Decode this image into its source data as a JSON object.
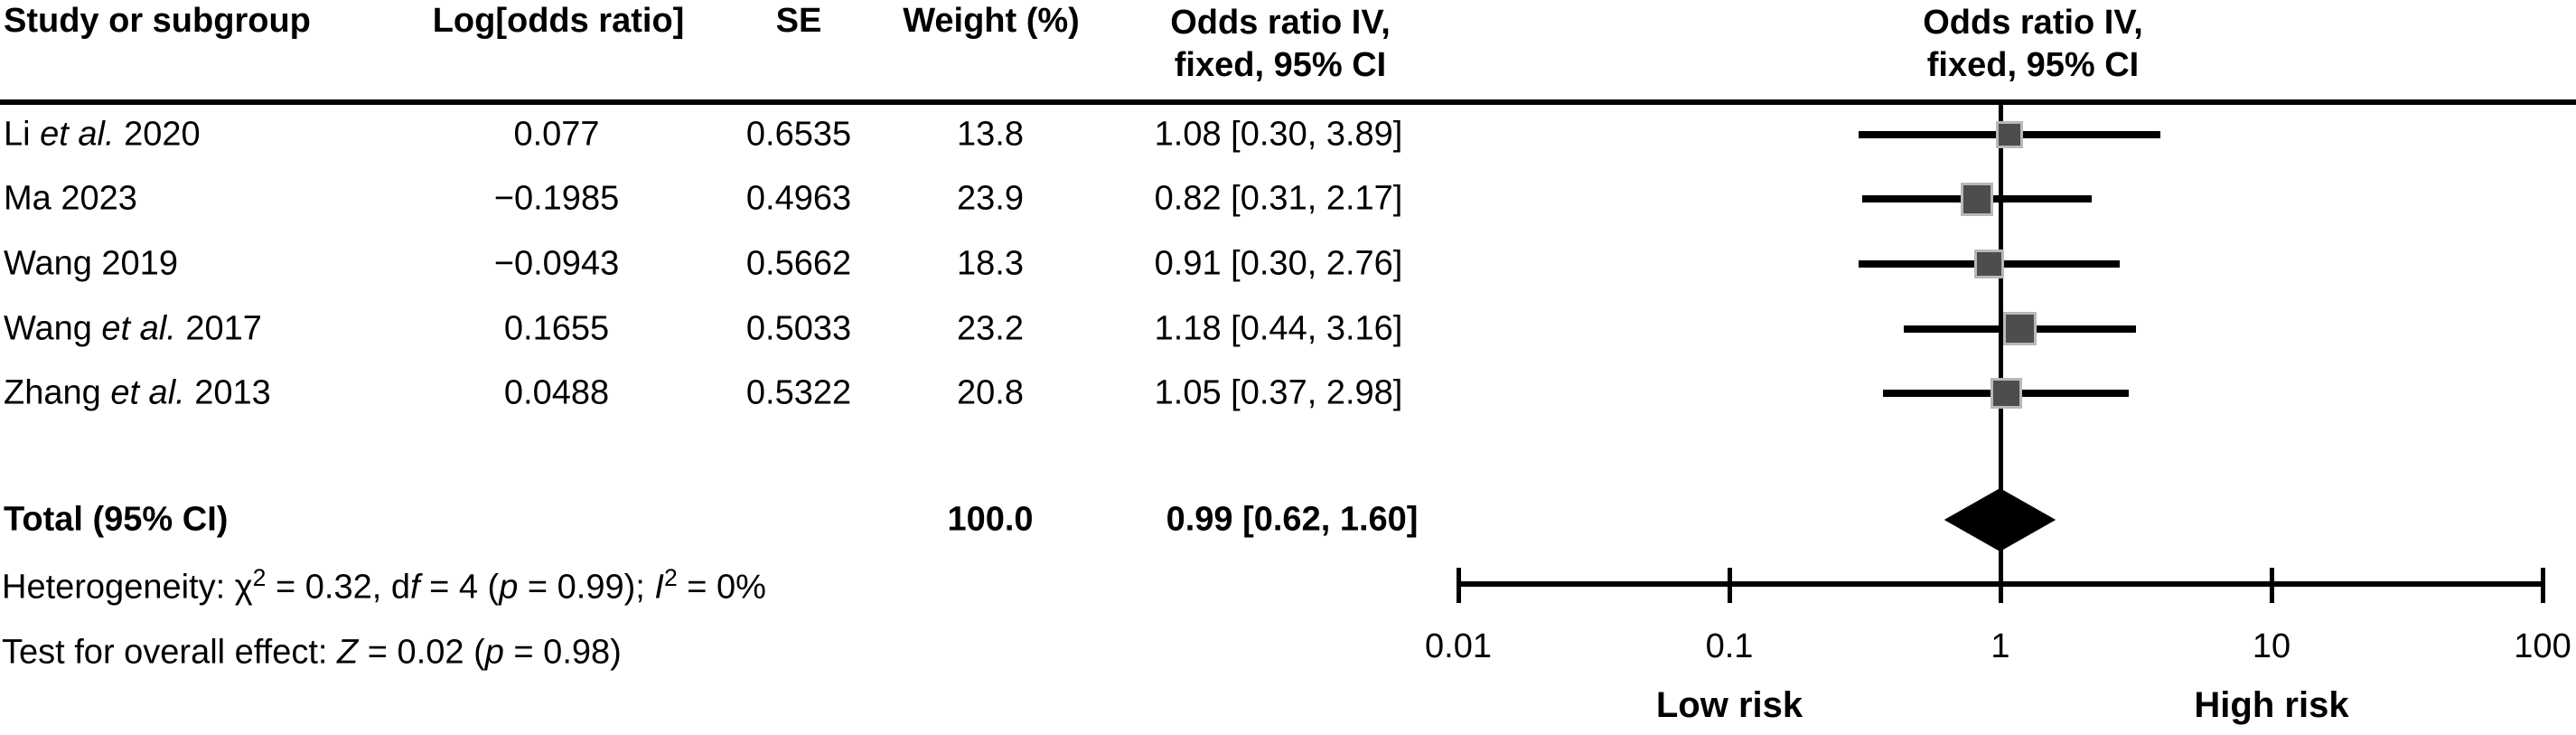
{
  "figure": {
    "headers": {
      "study": "Study or subgroup",
      "log_or": "Log[odds ratio]",
      "se": "SE",
      "weight": "Weight (%)",
      "or_col_line1": "Odds ratio IV,",
      "or_col_line2": "fixed, 95% CI",
      "plot_col_line1": "Odds ratio IV,",
      "plot_col_line2": "fixed, 95% CI"
    },
    "total_row": {
      "label": "Total (95% CI)",
      "weight": "100.0",
      "or_ci": "0.99 [0.62, 1.60]"
    },
    "footnotes": {
      "heterogeneity_segments": [
        {
          "t": "Heterogeneity: χ"
        },
        {
          "t": "2",
          "sup": true
        },
        {
          "t": " = 0.32, d"
        },
        {
          "t": "f",
          "i": true
        },
        {
          "t": " = 4 ("
        },
        {
          "t": "p",
          "i": true
        },
        {
          "t": " = 0.99); "
        },
        {
          "t": "I",
          "i": true
        },
        {
          "t": "2",
          "sup": true
        },
        {
          "t": " = 0%"
        }
      ],
      "overall_effect_segments": [
        {
          "t": "Test for overall effect: "
        },
        {
          "t": "Z",
          "i": true
        },
        {
          "t": " = 0.02 ("
        },
        {
          "t": "p",
          "i": true
        },
        {
          "t": " = 0.98)"
        }
      ]
    }
  },
  "chart_data": {
    "type": "scatter",
    "variant": "forest_plot_fixed_effect_meta_analysis",
    "effect_measure": "Odds ratio IV, fixed, 95% CI",
    "x_scale": "log10",
    "xlim": [
      0.01,
      100
    ],
    "x_ticks": [
      0.01,
      0.1,
      1,
      10,
      100
    ],
    "x_tick_labels": [
      "0.01",
      "0.1",
      "1",
      "10",
      "100"
    ],
    "axis_annotations": {
      "low_label": "Low risk",
      "high_label": "High risk",
      "low_anchor_x": 0.1,
      "high_anchor_x": 10
    },
    "studies": [
      {
        "name_segments": [
          {
            "t": "Li "
          },
          {
            "t": "et al.",
            "i": true
          },
          {
            "t": " 2020"
          }
        ],
        "log_or": "0.077",
        "se": "0.6535",
        "weight": "13.8",
        "or_ci": "1.08 [0.30, 3.89]",
        "or": 1.08,
        "ci_low": 0.3,
        "ci_high": 3.89,
        "weight_pct": 13.8
      },
      {
        "name_segments": [
          {
            "t": "Ma 2023"
          }
        ],
        "log_or": "−0.1985",
        "se": "0.4963",
        "weight": "23.9",
        "or_ci": "0.82 [0.31, 2.17]",
        "or": 0.82,
        "ci_low": 0.31,
        "ci_high": 2.17,
        "weight_pct": 23.9
      },
      {
        "name_segments": [
          {
            "t": "Wang 2019"
          }
        ],
        "log_or": "−0.0943",
        "se": "0.5662",
        "weight": "18.3",
        "or_ci": "0.91 [0.30, 2.76]",
        "or": 0.91,
        "ci_low": 0.3,
        "ci_high": 2.76,
        "weight_pct": 18.3
      },
      {
        "name_segments": [
          {
            "t": "Wang "
          },
          {
            "t": "et al.",
            "i": true
          },
          {
            "t": " 2017"
          }
        ],
        "log_or": "0.1655",
        "se": "0.5033",
        "weight": "23.2",
        "or_ci": "1.18 [0.44, 3.16]",
        "or": 1.18,
        "ci_low": 0.44,
        "ci_high": 3.16,
        "weight_pct": 23.2
      },
      {
        "name_segments": [
          {
            "t": "Zhang "
          },
          {
            "t": "et al.",
            "i": true
          },
          {
            "t": " 2013"
          }
        ],
        "log_or": "0.0488",
        "se": "0.5322",
        "weight": "20.8",
        "or_ci": "1.05 [0.37, 2.98]",
        "or": 1.05,
        "ci_low": 0.37,
        "ci_high": 2.98,
        "weight_pct": 20.8
      }
    ],
    "total": {
      "or": 0.99,
      "ci_low": 0.62,
      "ci_high": 1.6,
      "weight_pct": 100.0
    },
    "heterogeneity": {
      "chi2": 0.32,
      "df": 4,
      "p": 0.99,
      "i2_pct": 0
    },
    "overall_effect": {
      "z": 0.02,
      "p": 0.98
    },
    "colors": {
      "square_fill": "#4d4d4d",
      "square_halo": "#b9b9b9",
      "ci_line": "#000000",
      "diamond": "#000000",
      "axis": "#000000"
    }
  }
}
